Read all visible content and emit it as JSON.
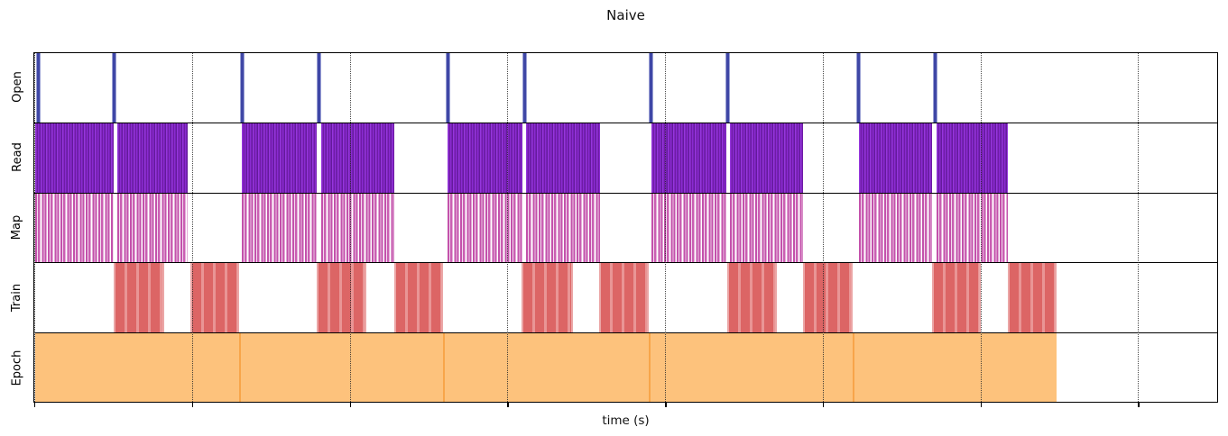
{
  "chart_data": {
    "type": "timeline",
    "title": "Naive",
    "xlabel": "time (s)",
    "x_axis": {
      "tick_labels_visible": false,
      "gridline_style": "dotted",
      "gridline_positions_pct": [
        0,
        13.33,
        26.66,
        39.99,
        53.33,
        66.66,
        79.99,
        93.32
      ]
    },
    "colors": {
      "open_event": "#3f47a6",
      "read_stripes": "#7e22c4",
      "map_stripes": "#c351ab",
      "train_block": "#dc6565",
      "epoch_block": "#fdc27c",
      "epoch_separator": "#f8a54a"
    },
    "rows": [
      {
        "label": "Open",
        "style": "event-line",
        "color": "#3f47a6",
        "events_pct": [
          0.38,
          6.78,
          17.59,
          24.07,
          34.96,
          41.43,
          52.17,
          58.64,
          69.69,
          76.16
        ]
      },
      {
        "label": "Read",
        "style": "dense-stripes",
        "color": "#7e22c4",
        "intervals_pct": [
          [
            0.08,
            6.68
          ],
          [
            7.02,
            12.95
          ],
          [
            17.52,
            23.9
          ],
          [
            24.24,
            30.46
          ],
          [
            34.96,
            41.26
          ],
          [
            41.6,
            47.83
          ],
          [
            52.17,
            58.47
          ],
          [
            58.81,
            64.97
          ],
          [
            69.69,
            75.92
          ],
          [
            76.26,
            82.33
          ]
        ]
      },
      {
        "label": "Map",
        "style": "sparse-stripes",
        "color": "#c351ab",
        "intervals_pct": [
          [
            0.08,
            6.68
          ],
          [
            7.02,
            12.95
          ],
          [
            17.52,
            23.9
          ],
          [
            24.24,
            30.46
          ],
          [
            34.96,
            41.26
          ],
          [
            41.6,
            47.83
          ],
          [
            52.17,
            58.47
          ],
          [
            58.81,
            64.97
          ],
          [
            69.69,
            75.92
          ],
          [
            76.26,
            82.33
          ]
        ]
      },
      {
        "label": "Train",
        "style": "striped-block",
        "color": "#dc6565",
        "intervals_pct": [
          [
            6.7,
            10.97
          ],
          [
            13.18,
            17.29
          ],
          [
            23.91,
            28.1
          ],
          [
            30.46,
            34.58
          ],
          [
            41.2,
            45.54
          ],
          [
            47.75,
            51.94
          ],
          [
            58.57,
            62.76
          ],
          [
            64.97,
            69.15
          ],
          [
            75.86,
            80.05
          ],
          [
            82.33,
            86.44
          ]
        ]
      },
      {
        "label": "Epoch",
        "style": "solid-block",
        "color": "#fdc27c",
        "separator_color": "#f8a54a",
        "intervals_pct": [
          [
            0.08,
            17.33
          ],
          [
            17.33,
            34.58
          ],
          [
            34.58,
            51.94
          ],
          [
            51.94,
            69.19
          ],
          [
            69.19,
            86.44
          ]
        ]
      }
    ]
  }
}
